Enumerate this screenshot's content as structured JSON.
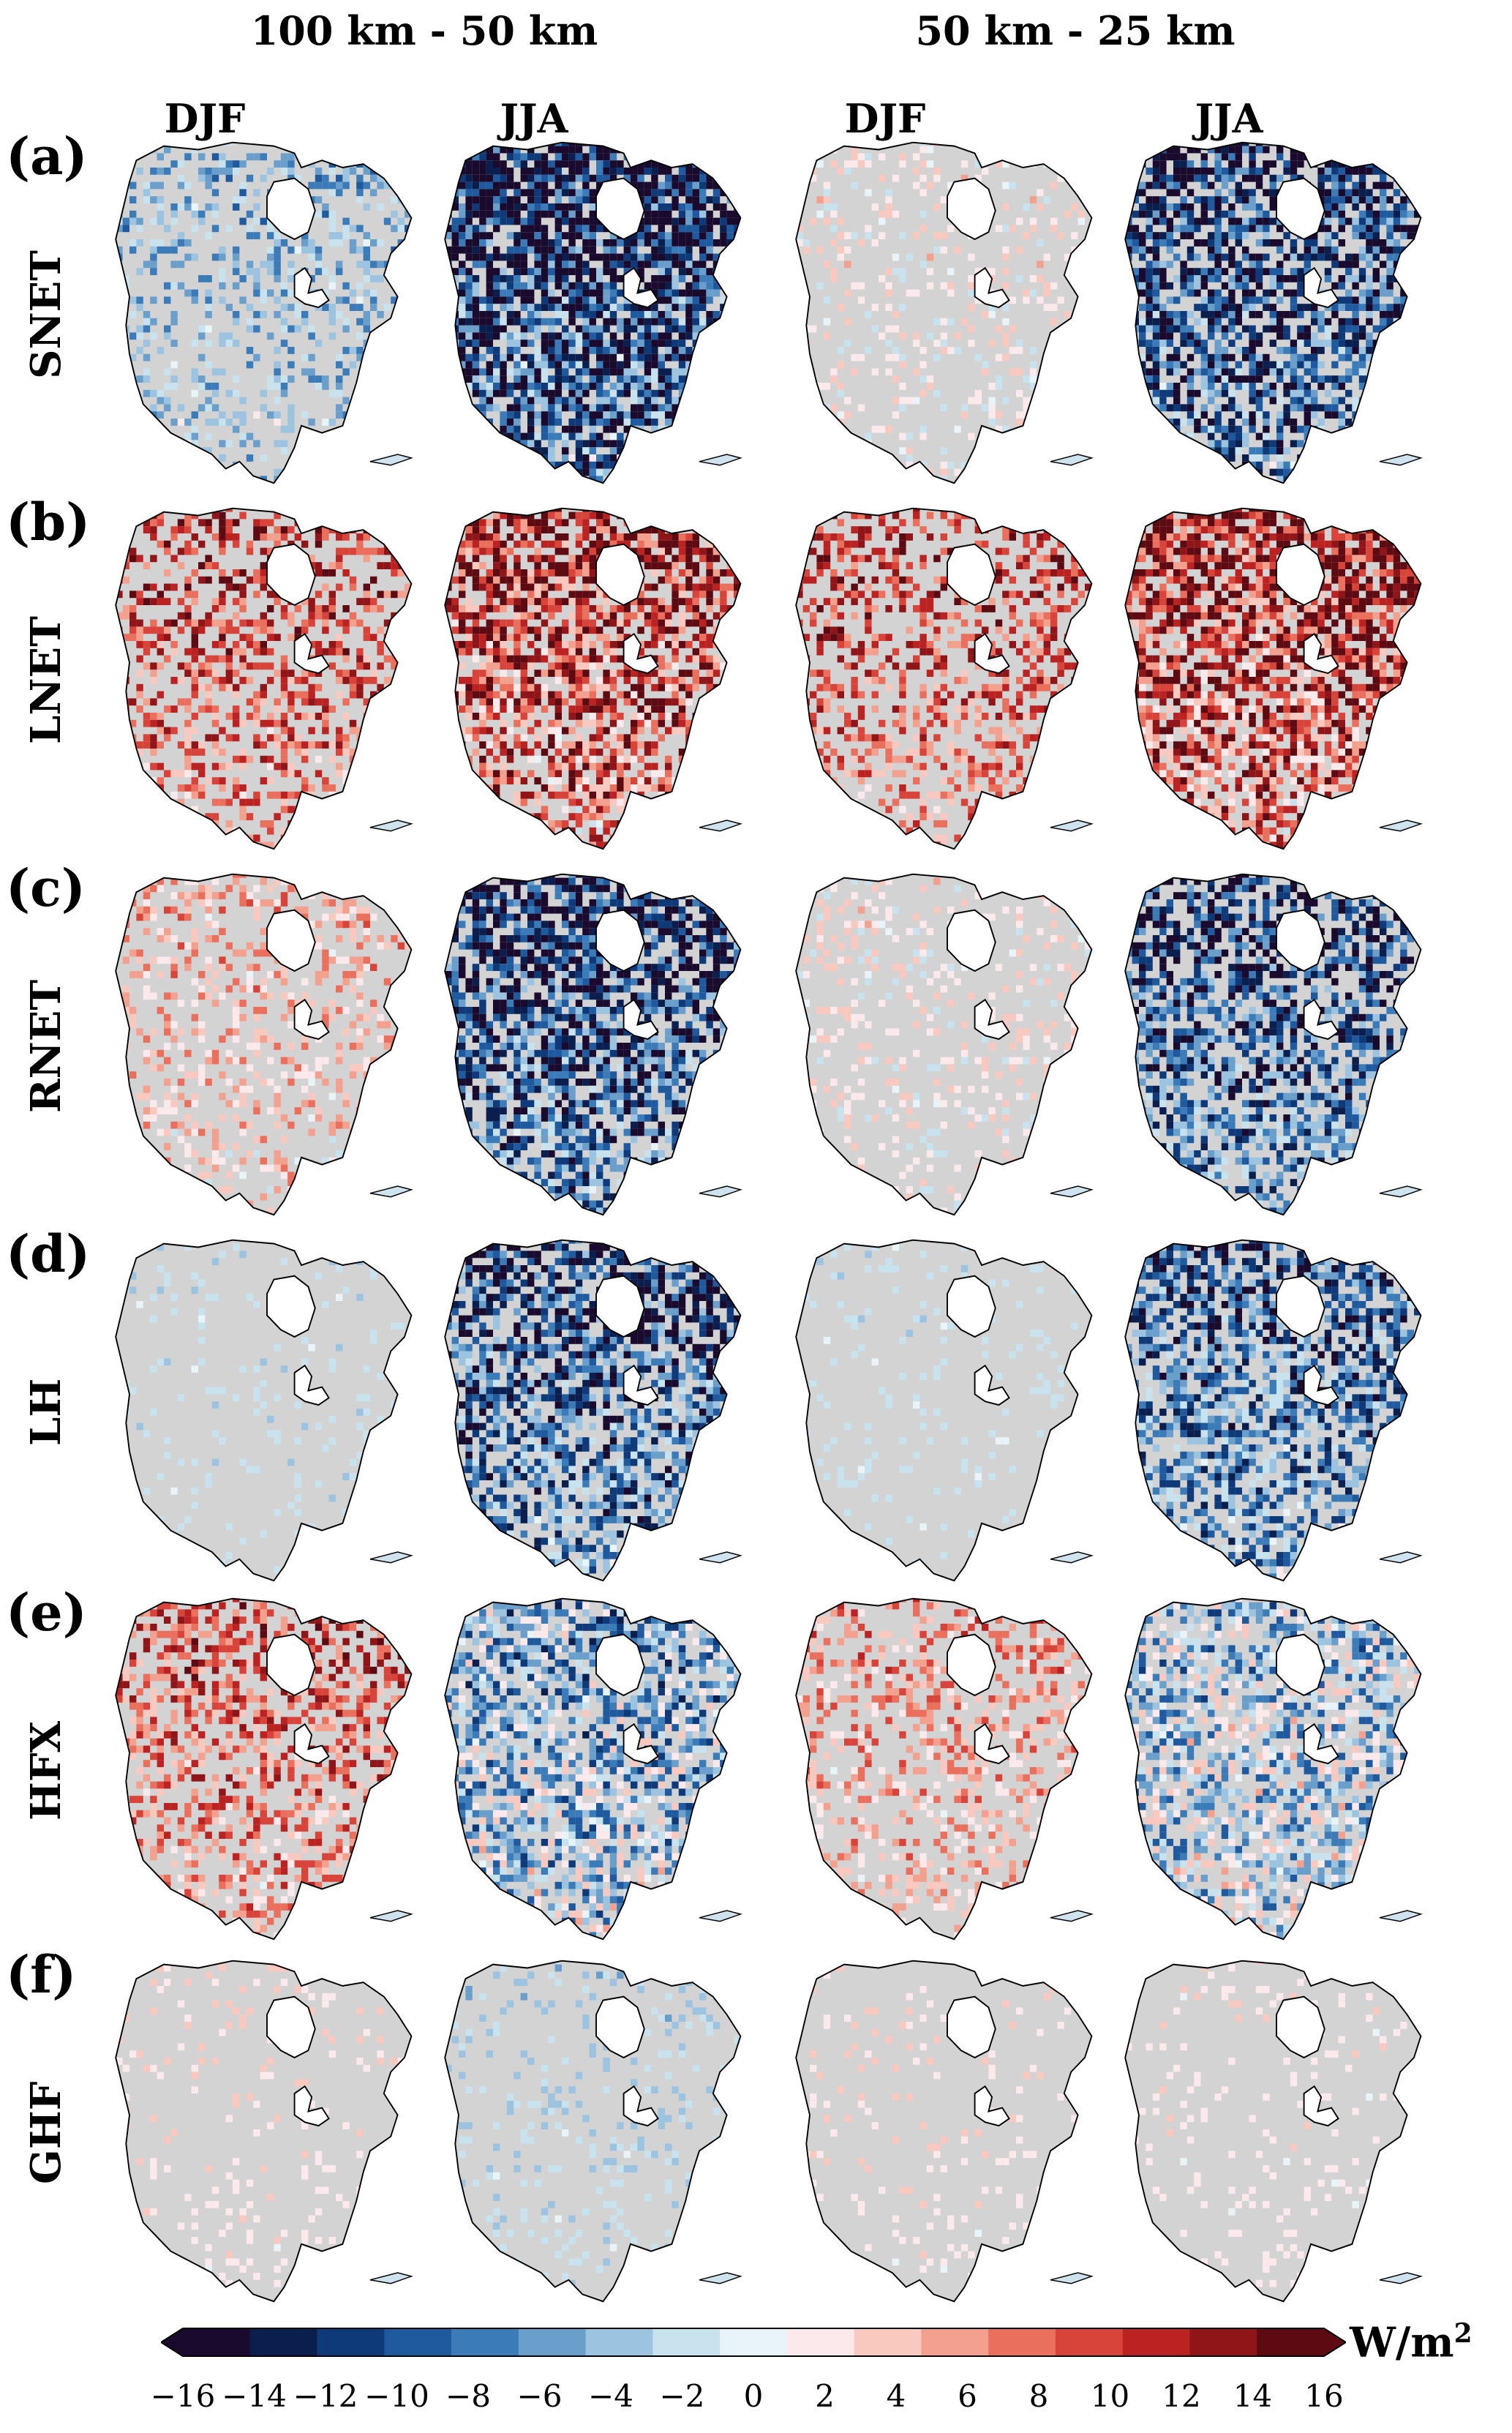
{
  "columns_header": [
    {
      "resolution": "100 km - 50 km",
      "seasons": [
        "DJF",
        "JJA"
      ]
    },
    {
      "resolution": "50 km - 25 km",
      "seasons": [
        "DJF",
        "JJA"
      ]
    }
  ],
  "rows": [
    {
      "letter": "(a)",
      "variable": "SNET",
      "intensity": [
        0.45,
        1.0,
        0.35,
        0.85
      ],
      "bias": [
        -0.3,
        -0.9,
        0.1,
        -0.8
      ],
      "colorScheme": "mixed"
    },
    {
      "letter": "(b)",
      "variable": "LNET",
      "intensity": [
        0.55,
        0.85,
        0.5,
        0.9
      ],
      "bias": [
        0.7,
        0.75,
        0.7,
        0.8
      ],
      "colorScheme": "mixed"
    },
    {
      "letter": "(c)",
      "variable": "RNET",
      "intensity": [
        0.45,
        0.85,
        0.35,
        0.7
      ],
      "bias": [
        0.3,
        -0.8,
        0.1,
        -0.75
      ],
      "colorScheme": "mixed"
    },
    {
      "letter": "(d)",
      "variable": "LH",
      "intensity": [
        0.2,
        0.8,
        0.15,
        0.75
      ],
      "bias": [
        -0.1,
        -0.7,
        -0.1,
        -0.6
      ],
      "colorScheme": "mixed"
    },
    {
      "letter": "(e)",
      "variable": "HFX",
      "intensity": [
        0.55,
        0.85,
        0.45,
        0.8
      ],
      "bias": [
        0.6,
        -0.3,
        0.4,
        -0.2
      ],
      "colorScheme": "mixed"
    },
    {
      "letter": "(f)",
      "variable": "GHF",
      "intensity": [
        0.12,
        0.18,
        0.12,
        0.18
      ],
      "bias": [
        0.2,
        -0.2,
        0.2,
        0.1
      ],
      "colorScheme": "mixed"
    }
  ],
  "colorbar": {
    "ticks": [
      "−16",
      "−14",
      "−12",
      "−10",
      "−8",
      "−6",
      "−4",
      "−2",
      "0",
      "2",
      "4",
      "6",
      "8",
      "10",
      "12",
      "14",
      "16"
    ],
    "unit": "W/m",
    "unit_exponent": "2",
    "colors": [
      "#1a0a2e",
      "#0b1f4f",
      "#0e3a7a",
      "#1f5a9e",
      "#3b7bb8",
      "#6a9fcc",
      "#9cc3df",
      "#c9e3ee",
      "#e8f4f8",
      "#fbe9ec",
      "#f9c9c0",
      "#f3a08e",
      "#ea6f5d",
      "#d8443a",
      "#bb2323",
      "#8f1519",
      "#5e0a12"
    ],
    "vmin": -16,
    "vmax": 16
  }
}
